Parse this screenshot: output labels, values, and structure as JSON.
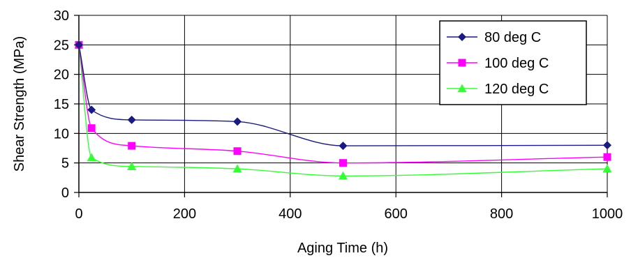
{
  "chart_data": {
    "type": "line",
    "title": "",
    "xlabel": "Aging Time (h)",
    "ylabel": "Shear Strength (MPa)",
    "xlim": [
      0,
      1000
    ],
    "ylim": [
      0,
      30
    ],
    "xticks": [
      0,
      200,
      400,
      600,
      800,
      1000
    ],
    "yticks": [
      0,
      5,
      10,
      15,
      20,
      25,
      30
    ],
    "grid": true,
    "smooth": true,
    "legend_position": "top-right",
    "series": [
      {
        "name": "80 deg C",
        "color": "#1a1a80",
        "marker": "diamond",
        "x": [
          0,
          24,
          100,
          300,
          500,
          1000
        ],
        "y": [
          25,
          14,
          12.3,
          12,
          7.9,
          8
        ]
      },
      {
        "name": "100 deg C",
        "color": "#ff00ff",
        "marker": "square",
        "x": [
          0,
          24,
          100,
          300,
          500,
          1000
        ],
        "y": [
          25,
          10.9,
          7.9,
          7,
          5,
          6
        ]
      },
      {
        "name": "120 deg C",
        "color": "#33ff33",
        "marker": "triangle",
        "x": [
          0,
          24,
          100,
          300,
          500,
          1000
        ],
        "y": [
          25,
          5.9,
          4.4,
          4,
          2.8,
          4
        ]
      }
    ]
  }
}
